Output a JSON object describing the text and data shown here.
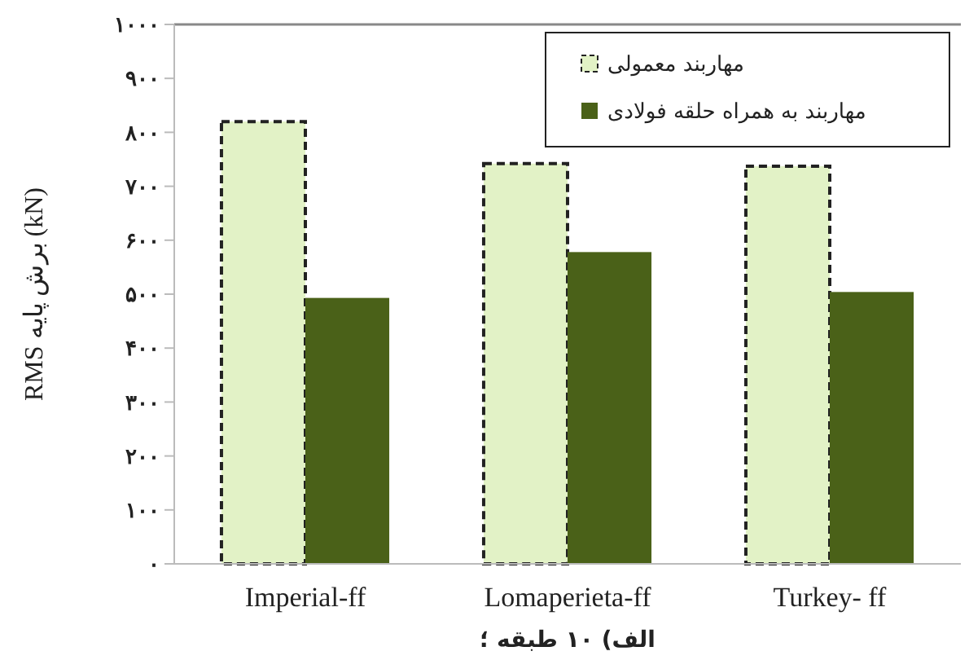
{
  "chart_data": {
    "type": "bar",
    "xlabel": "الف) ۱۰ طبقه ؛",
    "ylabel": "RMS برش پایه (kN)",
    "categories": [
      "Imperial-ff",
      "Lomaperieta-ff",
      "Turkey- ff"
    ],
    "series": [
      {
        "name": "مهاربند معمولی",
        "color": "#e2f2c6",
        "values": [
          820,
          742,
          737
        ],
        "line_style": "dashed"
      },
      {
        "name": "مهاربند به همراه حلقه فولادی",
        "color": "#4a6118",
        "values": [
          493,
          578,
          504
        ]
      }
    ],
    "ylim": [
      0,
      1000
    ],
    "yticks": [
      {
        "value": 0,
        "label": "۰"
      },
      {
        "value": 100,
        "label": "۱۰۰"
      },
      {
        "value": 200,
        "label": "۲۰۰"
      },
      {
        "value": 300,
        "label": "۳۰۰"
      },
      {
        "value": 400,
        "label": "۴۰۰"
      },
      {
        "value": 500,
        "label": "۵۰۰"
      },
      {
        "value": 600,
        "label": "۶۰۰"
      },
      {
        "value": 700,
        "label": "۷۰۰"
      },
      {
        "value": 800,
        "label": "۸۰۰"
      },
      {
        "value": 900,
        "label": "۹۰۰"
      },
      {
        "value": 1000,
        "label": "۱۰۰۰"
      }
    ],
    "legend": "top right",
    "grid": false
  }
}
